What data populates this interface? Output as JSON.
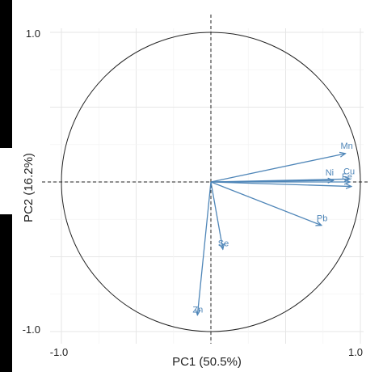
{
  "chart_data": {
    "type": "scatter",
    "subtype": "pca-variable-correlation-circle",
    "title": "",
    "xlabel": "PC1 (50.5%)",
    "ylabel": "PC2 (16.2%)",
    "xlim": [
      -1.0,
      1.0
    ],
    "ylim": [
      -1.0,
      1.0
    ],
    "x_ticks": [
      "-1.0",
      "1.0"
    ],
    "y_ticks": [
      "1.0",
      "-1.0"
    ],
    "grid": true,
    "unit_circle": true,
    "reference_lines": "dashed at x=0 and y=0",
    "arrow_color": "#4f86b8",
    "variables": [
      {
        "name": "Mn",
        "x": 0.9,
        "y": 0.19
      },
      {
        "name": "Ni",
        "x": 0.82,
        "y": 0.01
      },
      {
        "name": "Cu",
        "x": 0.93,
        "y": 0.02
      },
      {
        "name": "Fe",
        "x": 0.93,
        "y": 0.0
      },
      {
        "name": "",
        "x": 0.94,
        "y": -0.03
      },
      {
        "name": "Pb",
        "x": 0.74,
        "y": -0.29
      },
      {
        "name": "Se",
        "x": 0.08,
        "y": -0.45
      },
      {
        "name": "Zn",
        "x": -0.09,
        "y": -0.89
      }
    ]
  }
}
